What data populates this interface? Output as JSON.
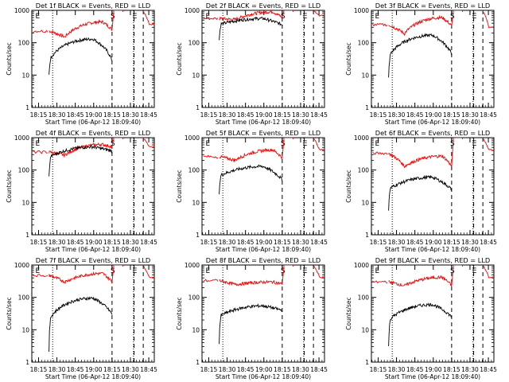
{
  "chart_data": [
    {
      "type": "line",
      "title": "Det 1f BLACK = Events, RED = LLD",
      "ylabel": "Counts/sec",
      "xlabel": "Start Time (06-Apr-12 18:09:40)",
      "y_scale": "log",
      "ylim": [
        1,
        1000
      ],
      "yticks": [
        "1",
        "10",
        "100",
        "1000"
      ],
      "x_ticklabels": [
        "18:15",
        "18:30",
        "18:45",
        "19:00",
        "18:15",
        "18:30",
        "18:45"
      ],
      "markers": [
        "S",
        "E",
        "E"
      ],
      "series": [
        {
          "color": "#ff0000",
          "shape": "u",
          "y_start": 230,
          "y_min": 150,
          "y_peak": 440,
          "y_drop": 250,
          "post_level": 1000,
          "tail": 360
        },
        {
          "color": "#000000",
          "shape": "arch",
          "y_start": 10,
          "y_min": 35,
          "y_peak": 130,
          "y_drop": 28
        }
      ]
    },
    {
      "type": "line",
      "title": "Det 2f BLACK = Events, RED = LLD",
      "ylabel": "Counts/sec",
      "xlabel": "Start Time (06-Apr-12 18:09:40)",
      "y_scale": "log",
      "ylim": [
        1,
        1000
      ],
      "yticks": [
        "1",
        "10",
        "100",
        "1000"
      ],
      "x_ticklabels": [
        "18:15",
        "18:30",
        "18:45",
        "19:00",
        "18:15",
        "18:30",
        "18:45"
      ],
      "markers": [
        "S",
        "E",
        "E"
      ],
      "series": [
        {
          "color": "#ff0000",
          "shape": "u",
          "y_start": 560,
          "y_min": 520,
          "y_peak": 900,
          "y_drop": 600,
          "post_level": 1000,
          "tail": 700
        },
        {
          "color": "#000000",
          "shape": "arch",
          "y_start": 120,
          "y_min": 380,
          "y_peak": 560,
          "y_drop": 360
        }
      ]
    },
    {
      "type": "line",
      "title": "Det 3f BLACK = Events, RED = LLD",
      "ylabel": "Counts/sec",
      "xlabel": "Start Time (06-Apr-12 18:09:40)",
      "y_scale": "log",
      "ylim": [
        1,
        1000
      ],
      "yticks": [
        "1",
        "10",
        "100",
        "1000"
      ],
      "x_ticklabels": [
        "18:15",
        "18:30",
        "18:45",
        "19:00",
        "18:15",
        "18:30",
        "18:45"
      ],
      "markers": [
        "S",
        "E",
        "E"
      ],
      "series": [
        {
          "color": "#ff0000",
          "shape": "u",
          "y_start": 360,
          "y_min": 190,
          "y_peak": 600,
          "y_drop": 330,
          "post_level": 1000,
          "tail": 300
        },
        {
          "color": "#000000",
          "shape": "arch",
          "y_start": 8,
          "y_min": 45,
          "y_peak": 170,
          "y_drop": 45
        }
      ]
    },
    {
      "type": "line",
      "title": "Det 4f BLACK = Events, RED = LLD",
      "ylabel": "Counts/sec",
      "xlabel": "Start Time (06-Apr-12 18:09:40)",
      "y_scale": "log",
      "ylim": [
        1,
        1000
      ],
      "yticks": [
        "1",
        "10",
        "100",
        "1000"
      ],
      "x_ticklabels": [
        "18:15",
        "18:30",
        "18:45",
        "19:00",
        "18:15",
        "18:30",
        "18:45"
      ],
      "markers": [
        "S",
        "E",
        "E"
      ],
      "series": [
        {
          "color": "#ff0000",
          "shape": "u",
          "y_start": 360,
          "y_min": 290,
          "y_peak": 620,
          "y_drop": 520,
          "post_level": 1000,
          "tail": 520
        },
        {
          "color": "#000000",
          "shape": "arch",
          "y_start": 60,
          "y_min": 270,
          "y_peak": 520,
          "y_drop": 390
        }
      ]
    },
    {
      "type": "line",
      "title": "Det 5f BLACK = Events, RED = LLD",
      "ylabel": "Counts/sec",
      "xlabel": "Start Time (06-Apr-12 18:09:40)",
      "y_scale": "log",
      "ylim": [
        1,
        1000
      ],
      "yticks": [
        "1",
        "10",
        "100",
        "1000"
      ],
      "x_ticklabels": [
        "18:15",
        "18:30",
        "18:45",
        "19:00",
        "18:15",
        "18:30",
        "18:45"
      ],
      "markers": [
        "S",
        "E",
        "E"
      ],
      "series": [
        {
          "color": "#ff0000",
          "shape": "u",
          "y_start": 260,
          "y_min": 200,
          "y_peak": 420,
          "y_drop": 240,
          "post_level": 1000,
          "tail": 420
        },
        {
          "color": "#000000",
          "shape": "arch",
          "y_start": 20,
          "y_min": 70,
          "y_peak": 130,
          "y_drop": 50
        }
      ]
    },
    {
      "type": "line",
      "title": "Det 6f BLACK = Events, RED = LLD",
      "ylabel": "Counts/sec",
      "xlabel": "Start Time (06-Apr-12 18:09:40)",
      "y_scale": "log",
      "ylim": [
        1,
        1000
      ],
      "yticks": [
        "1",
        "10",
        "100",
        "1000"
      ],
      "x_ticklabels": [
        "18:15",
        "18:30",
        "18:45",
        "19:00",
        "18:15",
        "18:30",
        "18:45"
      ],
      "markers": [
        "S",
        "E",
        "E"
      ],
      "series": [
        {
          "color": "#ff0000",
          "shape": "u",
          "y_start": 330,
          "y_min": 130,
          "y_peak": 270,
          "y_drop": 130,
          "post_level": 1000,
          "tail": 420
        },
        {
          "color": "#000000",
          "shape": "arch",
          "y_start": 6,
          "y_min": 28,
          "y_peak": 60,
          "y_drop": 25
        }
      ]
    },
    {
      "type": "line",
      "title": "Det 7f BLACK = Events, RED = LLD",
      "ylabel": "Counts/sec",
      "xlabel": "Start Time (06-Apr-12 18:09:40)",
      "y_scale": "log",
      "ylim": [
        1,
        1000
      ],
      "yticks": [
        "1",
        "10",
        "100",
        "1000"
      ],
      "x_ticklabels": [
        "18:15",
        "18:30",
        "18:45",
        "19:00",
        "18:15",
        "18:30",
        "18:45"
      ],
      "markers": [
        "S",
        "E",
        "E"
      ],
      "series": [
        {
          "color": "#ff0000",
          "shape": "u",
          "y_start": 480,
          "y_min": 300,
          "y_peak": 550,
          "y_drop": 300,
          "post_level": 1000,
          "tail": 420
        },
        {
          "color": "#000000",
          "shape": "arch",
          "y_start": 2,
          "y_min": 25,
          "y_peak": 95,
          "y_drop": 30
        }
      ]
    },
    {
      "type": "line",
      "title": "Det 8f BLACK = Events, RED = LLD",
      "ylabel": "Counts/sec",
      "xlabel": "Start Time (06-Apr-12 18:09:40)",
      "y_scale": "log",
      "ylim": [
        1,
        1000
      ],
      "yticks": [
        "1",
        "10",
        "100",
        "1000"
      ],
      "x_ticklabels": [
        "18:15",
        "18:30",
        "18:45",
        "19:00",
        "18:15",
        "18:30",
        "18:45"
      ],
      "markers": [
        "S",
        "E",
        "E"
      ],
      "series": [
        {
          "color": "#ff0000",
          "shape": "u",
          "y_start": 330,
          "y_min": 250,
          "y_peak": 300,
          "y_drop": 260,
          "post_level": 1000,
          "tail": 420
        },
        {
          "color": "#000000",
          "shape": "arch",
          "y_start": 4,
          "y_min": 28,
          "y_peak": 55,
          "y_drop": 40
        }
      ]
    },
    {
      "type": "line",
      "title": "Det 9f BLACK = Events, RED = LLD",
      "ylabel": "Counts/sec",
      "xlabel": "Start Time (06-Apr-12 18:09:40)",
      "y_scale": "log",
      "ylim": [
        1,
        1000
      ],
      "yticks": [
        "1",
        "10",
        "100",
        "1000"
      ],
      "x_ticklabels": [
        "18:15",
        "18:30",
        "18:45",
        "19:00",
        "18:15",
        "18:30",
        "18:45"
      ],
      "markers": [
        "S",
        "E",
        "E"
      ],
      "series": [
        {
          "color": "#ff0000",
          "shape": "u",
          "y_start": 300,
          "y_min": 230,
          "y_peak": 420,
          "y_drop": 230,
          "post_level": 1000,
          "tail": 420
        },
        {
          "color": "#000000",
          "shape": "arch",
          "y_start": 3,
          "y_min": 22,
          "y_peak": 60,
          "y_drop": 25
        }
      ]
    }
  ]
}
